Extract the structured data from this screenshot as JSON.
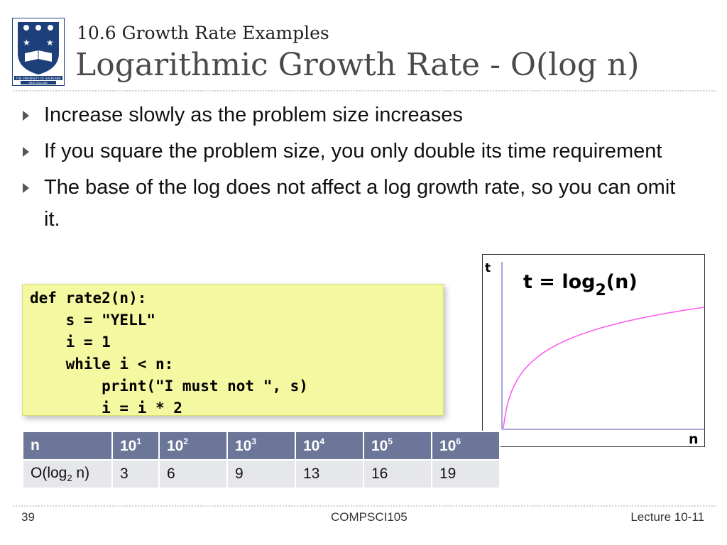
{
  "header": {
    "subtitle": "10.6 Growth Rate Examples",
    "title": "Logarithmic Growth Rate - O(log n)"
  },
  "logo": {
    "text_line1": "THE UNIVERSITY OF AUCKLAND",
    "text_line2": "NEW ZEALAND",
    "colors": {
      "navy": "#1d3f7a",
      "border": "#1d3f7a"
    }
  },
  "bullets": [
    "Increase slowly as the problem size increases",
    "If you square the problem size, you only double its time requirement",
    "The base of the log does not affect a log growth rate, so you can omit it."
  ],
  "code": {
    "lines": [
      "def rate2(n):",
      "    s = \"YELL\"",
      "    i = 1",
      "    while i < n:",
      "        print(\"I must not \", s)",
      "        i = i * 2"
    ],
    "background": "#f4f8a0"
  },
  "graph": {
    "y_axis_label": "t",
    "x_axis_label": "n",
    "formula_prefix": "t = log",
    "formula_sub": "2",
    "formula_suffix": "(n)",
    "curve_color": "#ff55ee",
    "axis_color": "#8888cc"
  },
  "table": {
    "header_row": {
      "label": "n",
      "base": "10",
      "exponents": [
        "1",
        "2",
        "3",
        "4",
        "5",
        "6"
      ]
    },
    "body_row": {
      "label_prefix": "O(log",
      "label_sub": "2",
      "label_suffix": " n)",
      "values": [
        "3",
        "6",
        "9",
        "13",
        "16",
        "19"
      ]
    },
    "colors": {
      "header_bg": "#6b7699",
      "body_bg": "#e6e7ea"
    }
  },
  "footer": {
    "page_number": "39",
    "course": "COMPSCI105",
    "lecture": "Lecture 10-11"
  }
}
